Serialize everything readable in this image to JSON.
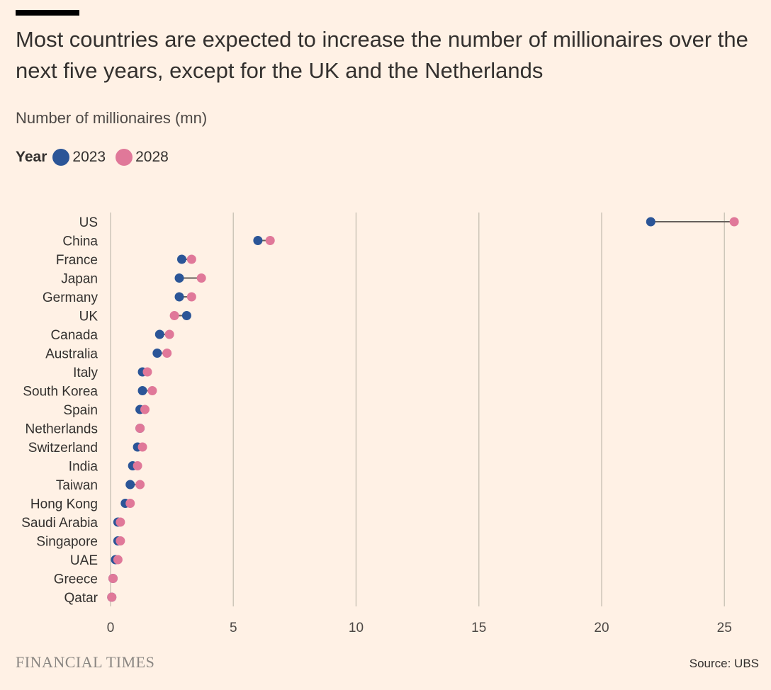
{
  "title": "Most countries are expected to increase the number of millionaires over the next five years, except for the UK and the Netherlands",
  "subtitle": "Number of millionaires (mn)",
  "legend": {
    "title": "Year",
    "items": [
      {
        "label": "2023",
        "color": "#2B5597"
      },
      {
        "label": "2028",
        "color": "#E07899"
      }
    ]
  },
  "footer": {
    "logo": "FINANCIAL TIMES",
    "source": "Source: UBS"
  },
  "chart_data": {
    "type": "dumbbell",
    "xlabel": "",
    "ylabel": "",
    "xlim": [
      0,
      26
    ],
    "xticks": [
      0,
      5,
      10,
      15,
      20,
      25
    ],
    "grid": "vertical",
    "legend_placement": "top-left",
    "categories": [
      "US",
      "China",
      "France",
      "Japan",
      "Germany",
      "UK",
      "Canada",
      "Australia",
      "Italy",
      "South Korea",
      "Spain",
      "Netherlands",
      "Switzerland",
      "India",
      "Taiwan",
      "Hong Kong",
      "Saudi Arabia",
      "Singapore",
      "UAE",
      "Greece",
      "Qatar"
    ],
    "series": [
      {
        "name": "2023",
        "color": "#2B5597",
        "values": [
          22.0,
          6.0,
          2.9,
          2.8,
          2.8,
          3.1,
          2.0,
          1.9,
          1.3,
          1.3,
          1.2,
          1.2,
          1.1,
          0.9,
          0.8,
          0.6,
          0.3,
          0.3,
          0.2,
          0.1,
          0.05
        ]
      },
      {
        "name": "2028",
        "color": "#E07899",
        "values": [
          25.4,
          6.5,
          3.3,
          3.7,
          3.3,
          2.6,
          2.4,
          2.3,
          1.5,
          1.7,
          1.4,
          1.2,
          1.3,
          1.1,
          1.2,
          0.8,
          0.4,
          0.4,
          0.3,
          0.1,
          0.05
        ]
      }
    ]
  }
}
